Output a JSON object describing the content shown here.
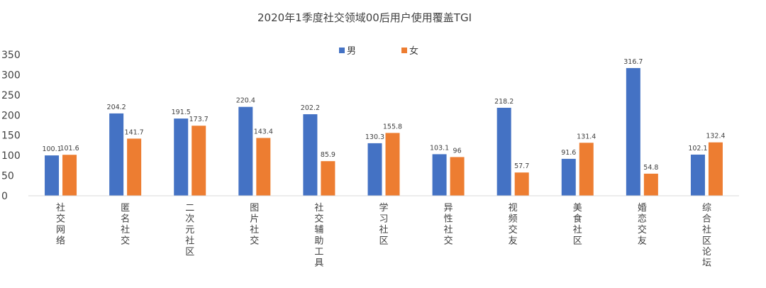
{
  "chart_data": {
    "type": "bar",
    "title": "2020年1季度社交领域00后用户使用覆盖TGI",
    "xlabel": "",
    "ylabel": "",
    "ylim": [
      0,
      350
    ],
    "yticks": [
      "0",
      "50",
      "100",
      "150",
      "200",
      "250",
      "300",
      "350"
    ],
    "grid": false,
    "legend_position": "top-center",
    "categories": [
      "社交网络",
      "匿名社交",
      "二次元社区",
      "图片社交",
      "社交辅助工具",
      "学习社区",
      "异性社交",
      "视频交友",
      "美食社区",
      "婚恋交友",
      "综合社区论坛"
    ],
    "series": [
      {
        "name": "男",
        "color": "#4472C4",
        "values": [
          100.1,
          204.2,
          191.5,
          220.4,
          202.2,
          130.3,
          103.1,
          218.2,
          91.6,
          316.7,
          102.1
        ]
      },
      {
        "name": "女",
        "color": "#ED7D31",
        "values": [
          101.6,
          141.7,
          173.7,
          143.4,
          85.9,
          155.8,
          96,
          57.7,
          131.4,
          54.8,
          132.4
        ]
      }
    ]
  }
}
